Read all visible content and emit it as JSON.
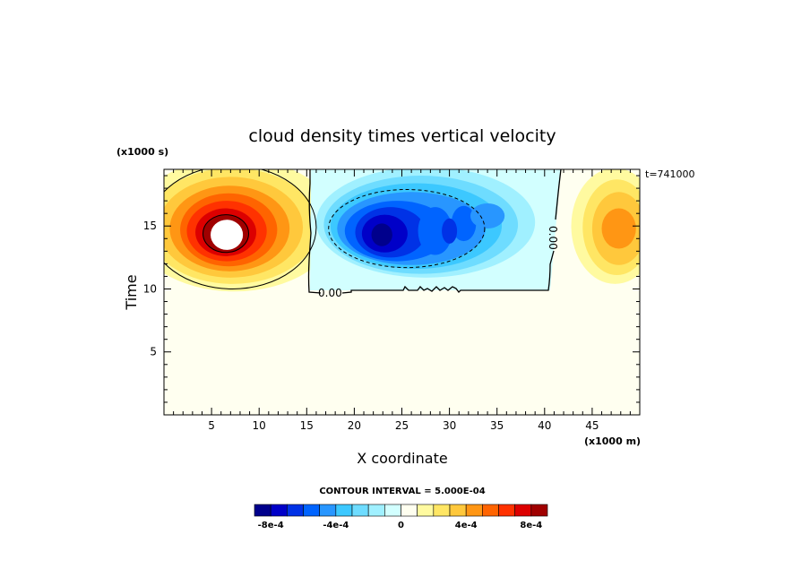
{
  "chart_data": {
    "type": "heatmap",
    "title": "cloud density times vertical velocity",
    "xlabel": "X coordinate",
    "ylabel": "Time",
    "x_unit": "(x1000 m)",
    "y_unit": "(x1000 s)",
    "time_stamp": "t=741000",
    "xlim": [
      0,
      50
    ],
    "ylim": [
      0,
      19.5
    ],
    "x_ticks": [
      5,
      10,
      15,
      20,
      25,
      30,
      35,
      40,
      45
    ],
    "y_ticks": [
      5,
      10,
      15
    ],
    "contour_interval_text": "CONTOUR INTERVAL = 5.000E-04",
    "contour_labels": [
      "0.00",
      "0.00"
    ],
    "colorbar": {
      "colors": [
        "#00008c",
        "#0000c8",
        "#0032e6",
        "#0064ff",
        "#2896ff",
        "#3cc8ff",
        "#6edcff",
        "#a0f0ff",
        "#d2ffff",
        "#fffff0",
        "#fffaa0",
        "#ffe664",
        "#ffc83c",
        "#ff9614",
        "#ff6400",
        "#ff3200",
        "#dc0000",
        "#a00000"
      ],
      "tick_labels": [
        "-8e-4",
        "-4e-4",
        "0",
        "4e-4",
        "8e-4"
      ],
      "tick_values": [
        -0.0008,
        -0.0004,
        0,
        0.0004,
        0.0008
      ]
    },
    "features": [
      {
        "kind": "positive_max",
        "x": 6.5,
        "y": 14.5,
        "peak": 0.001
      },
      {
        "kind": "negative_min",
        "x": 23,
        "y": 14.5,
        "peak": -0.0009
      },
      {
        "kind": "positive_max",
        "x": 46,
        "y": 14.8,
        "peak": 0.0004
      }
    ]
  }
}
